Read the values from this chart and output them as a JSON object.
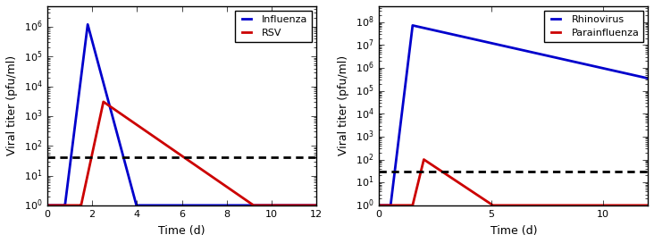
{
  "panel1": {
    "xlabel": "Time (d)",
    "ylabel": "Viral titer (pfu/ml)",
    "xlim": [
      0,
      12
    ],
    "ylim": [
      1.0,
      5000000.0
    ],
    "dashed_line_y": 40,
    "line1_label": "Influenza",
    "line1_color": "#0000cc",
    "line2_label": "RSV",
    "line2_color": "#cc0000",
    "xticks": [
      0,
      2,
      4,
      6,
      8,
      10,
      12
    ]
  },
  "panel2": {
    "xlabel": "Time (d)",
    "ylabel": "Viral titer (pfu/ml)",
    "xlim": [
      0,
      12
    ],
    "ylim": [
      1.0,
      500000000.0
    ],
    "dashed_line_y": 30,
    "line1_label": "Rhinovirus",
    "line1_color": "#0000cc",
    "line2_label": "Parainfluenza",
    "line2_color": "#cc0000",
    "xticks": [
      0,
      5,
      10
    ]
  },
  "bg_color": "#ffffff",
  "linewidth": 2.0,
  "legend_fontsize": 8,
  "axis_fontsize": 9,
  "tick_fontsize": 8
}
